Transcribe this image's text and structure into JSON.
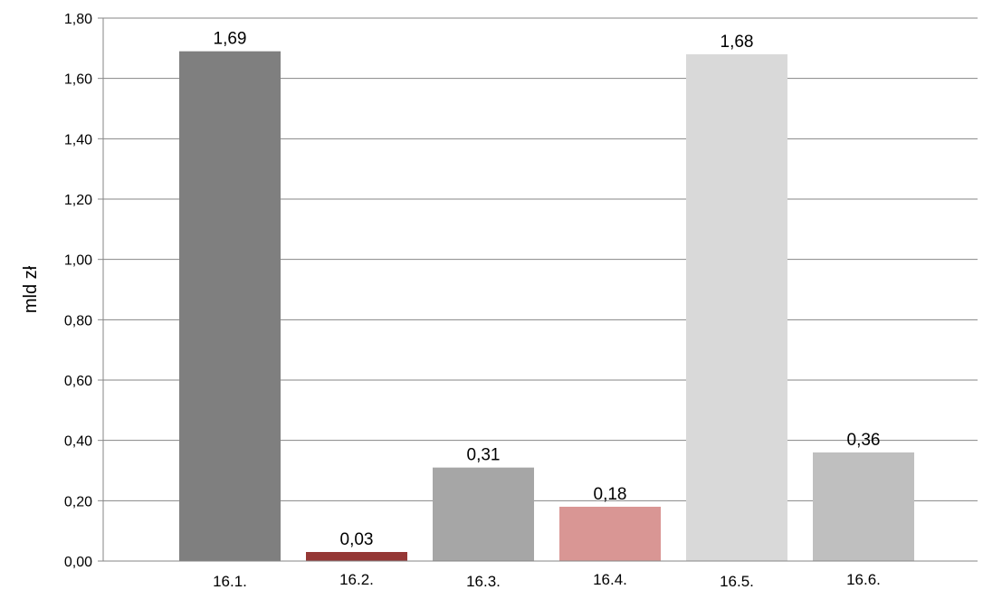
{
  "chart_data": {
    "type": "bar",
    "title": "",
    "xlabel": "",
    "ylabel": "mld zł",
    "ylim": [
      0,
      1.8
    ],
    "ytick_labels": [
      "0,00",
      "0,20",
      "0,40",
      "0,60",
      "0,80",
      "1,00",
      "1,20",
      "1,40",
      "1,60",
      "1,80"
    ],
    "categories": [
      "16.1.",
      "16.2.",
      "16.3.",
      "16.4.",
      "16.5.",
      "16.6."
    ],
    "values": [
      1.69,
      0.03,
      0.31,
      0.18,
      1.68,
      0.36
    ],
    "value_labels": [
      "1,69",
      "0,03",
      "0,31",
      "0,18",
      "1,68",
      "0,36"
    ],
    "colors": [
      "#7f7f7f",
      "#953735",
      "#a6a6a6",
      "#d99694",
      "#d9d9d9",
      "#bfbfbf"
    ],
    "grid": true,
    "legend": "none"
  }
}
